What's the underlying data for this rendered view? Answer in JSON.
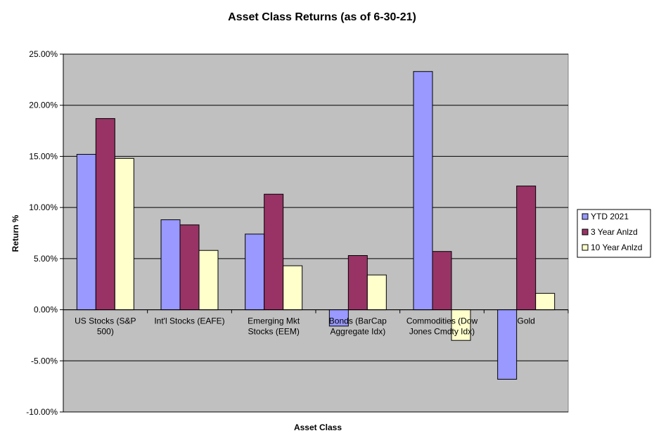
{
  "chart_data": {
    "type": "bar",
    "title": "Asset Class Returns (as of 6-30-21)",
    "xlabel": "Asset  Class",
    "ylabel": "Return %",
    "ylim": [
      -10,
      25
    ],
    "yticks": [
      25,
      20,
      15,
      10,
      5,
      0,
      -5,
      -10
    ],
    "ytick_labels": [
      "25.00%",
      "20.00%",
      "15.00%",
      "10.00%",
      "5.00%",
      "0.00%",
      "-5.00%",
      "-10.00%"
    ],
    "categories": [
      [
        "US Stocks (S&P",
        "500)"
      ],
      [
        "Int'l Stocks (EAFE)"
      ],
      [
        "Emerging Mkt",
        "Stocks (EEM)"
      ],
      [
        "Bonds (BarCap",
        "Aggregate Idx)"
      ],
      [
        "Commodities (Dow",
        "Jones Cmdty Idx)"
      ],
      [
        "Gold"
      ]
    ],
    "series": [
      {
        "name": "YTD 2021",
        "color": "#9999FF",
        "values": [
          15.2,
          8.8,
          7.4,
          -1.6,
          23.3,
          -6.8
        ]
      },
      {
        "name": "3 Year Anlzd",
        "color": "#993366",
        "values": [
          18.7,
          8.3,
          11.3,
          5.3,
          5.7,
          12.1
        ]
      },
      {
        "name": "10 Year Anlzd",
        "color": "#FFFFCC",
        "values": [
          14.8,
          5.8,
          4.3,
          3.4,
          -3.0,
          1.6
        ]
      }
    ],
    "grid": true,
    "legend_position": "right",
    "plot_background": "#C0C0C0"
  }
}
